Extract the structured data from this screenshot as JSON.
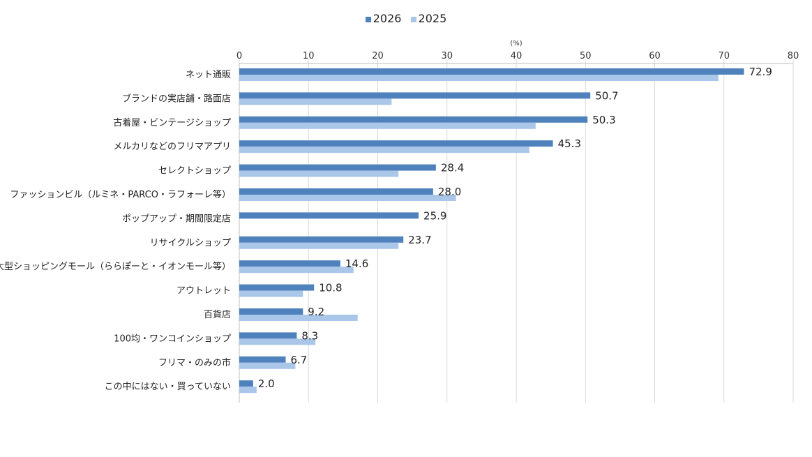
{
  "chart_data": {
    "type": "bar",
    "orientation": "horizontal",
    "unit_label": "(%)",
    "xlim": [
      0,
      80
    ],
    "xticks": [
      0,
      10,
      20,
      30,
      40,
      50,
      60,
      70,
      80
    ],
    "grid": true,
    "legend_position": "top-center",
    "categories": [
      "ネット通販",
      "ブランドの実店舗・路面店",
      "古着屋・ビンテージショップ",
      "メルカリなどのフリマアプリ",
      "セレクトショップ",
      "ファッションビル（ルミネ・PARCO・ラフォーレ等）",
      "ポップアップ・期間限定店",
      "リサイクルショップ",
      "大型ショッピングモール（ららぽーと・イオンモール等）",
      "アウトレット",
      "百貨店",
      "100均・ワンコインショップ",
      "フリマ・のみの市",
      "この中にはない・買っていない"
    ],
    "series": [
      {
        "name": "2026",
        "color": "#4f81bd",
        "values": [
          72.9,
          50.7,
          50.3,
          45.3,
          28.4,
          28.0,
          25.9,
          23.7,
          14.6,
          10.8,
          9.2,
          8.3,
          6.7,
          2.0
        ],
        "labels": [
          "72.9",
          "50.7",
          "50.3",
          "45.3",
          "28.4",
          "28.0",
          "25.9",
          "23.7",
          "14.6",
          "10.8",
          "9.2",
          "8.3",
          "6.7",
          "2.0"
        ]
      },
      {
        "name": "2025",
        "color": "#aac7ea",
        "values": [
          69.2,
          22.0,
          42.8,
          41.9,
          23.0,
          31.3,
          0,
          23.0,
          16.5,
          9.2,
          17.1,
          11.0,
          8.1,
          2.5
        ]
      }
    ]
  }
}
